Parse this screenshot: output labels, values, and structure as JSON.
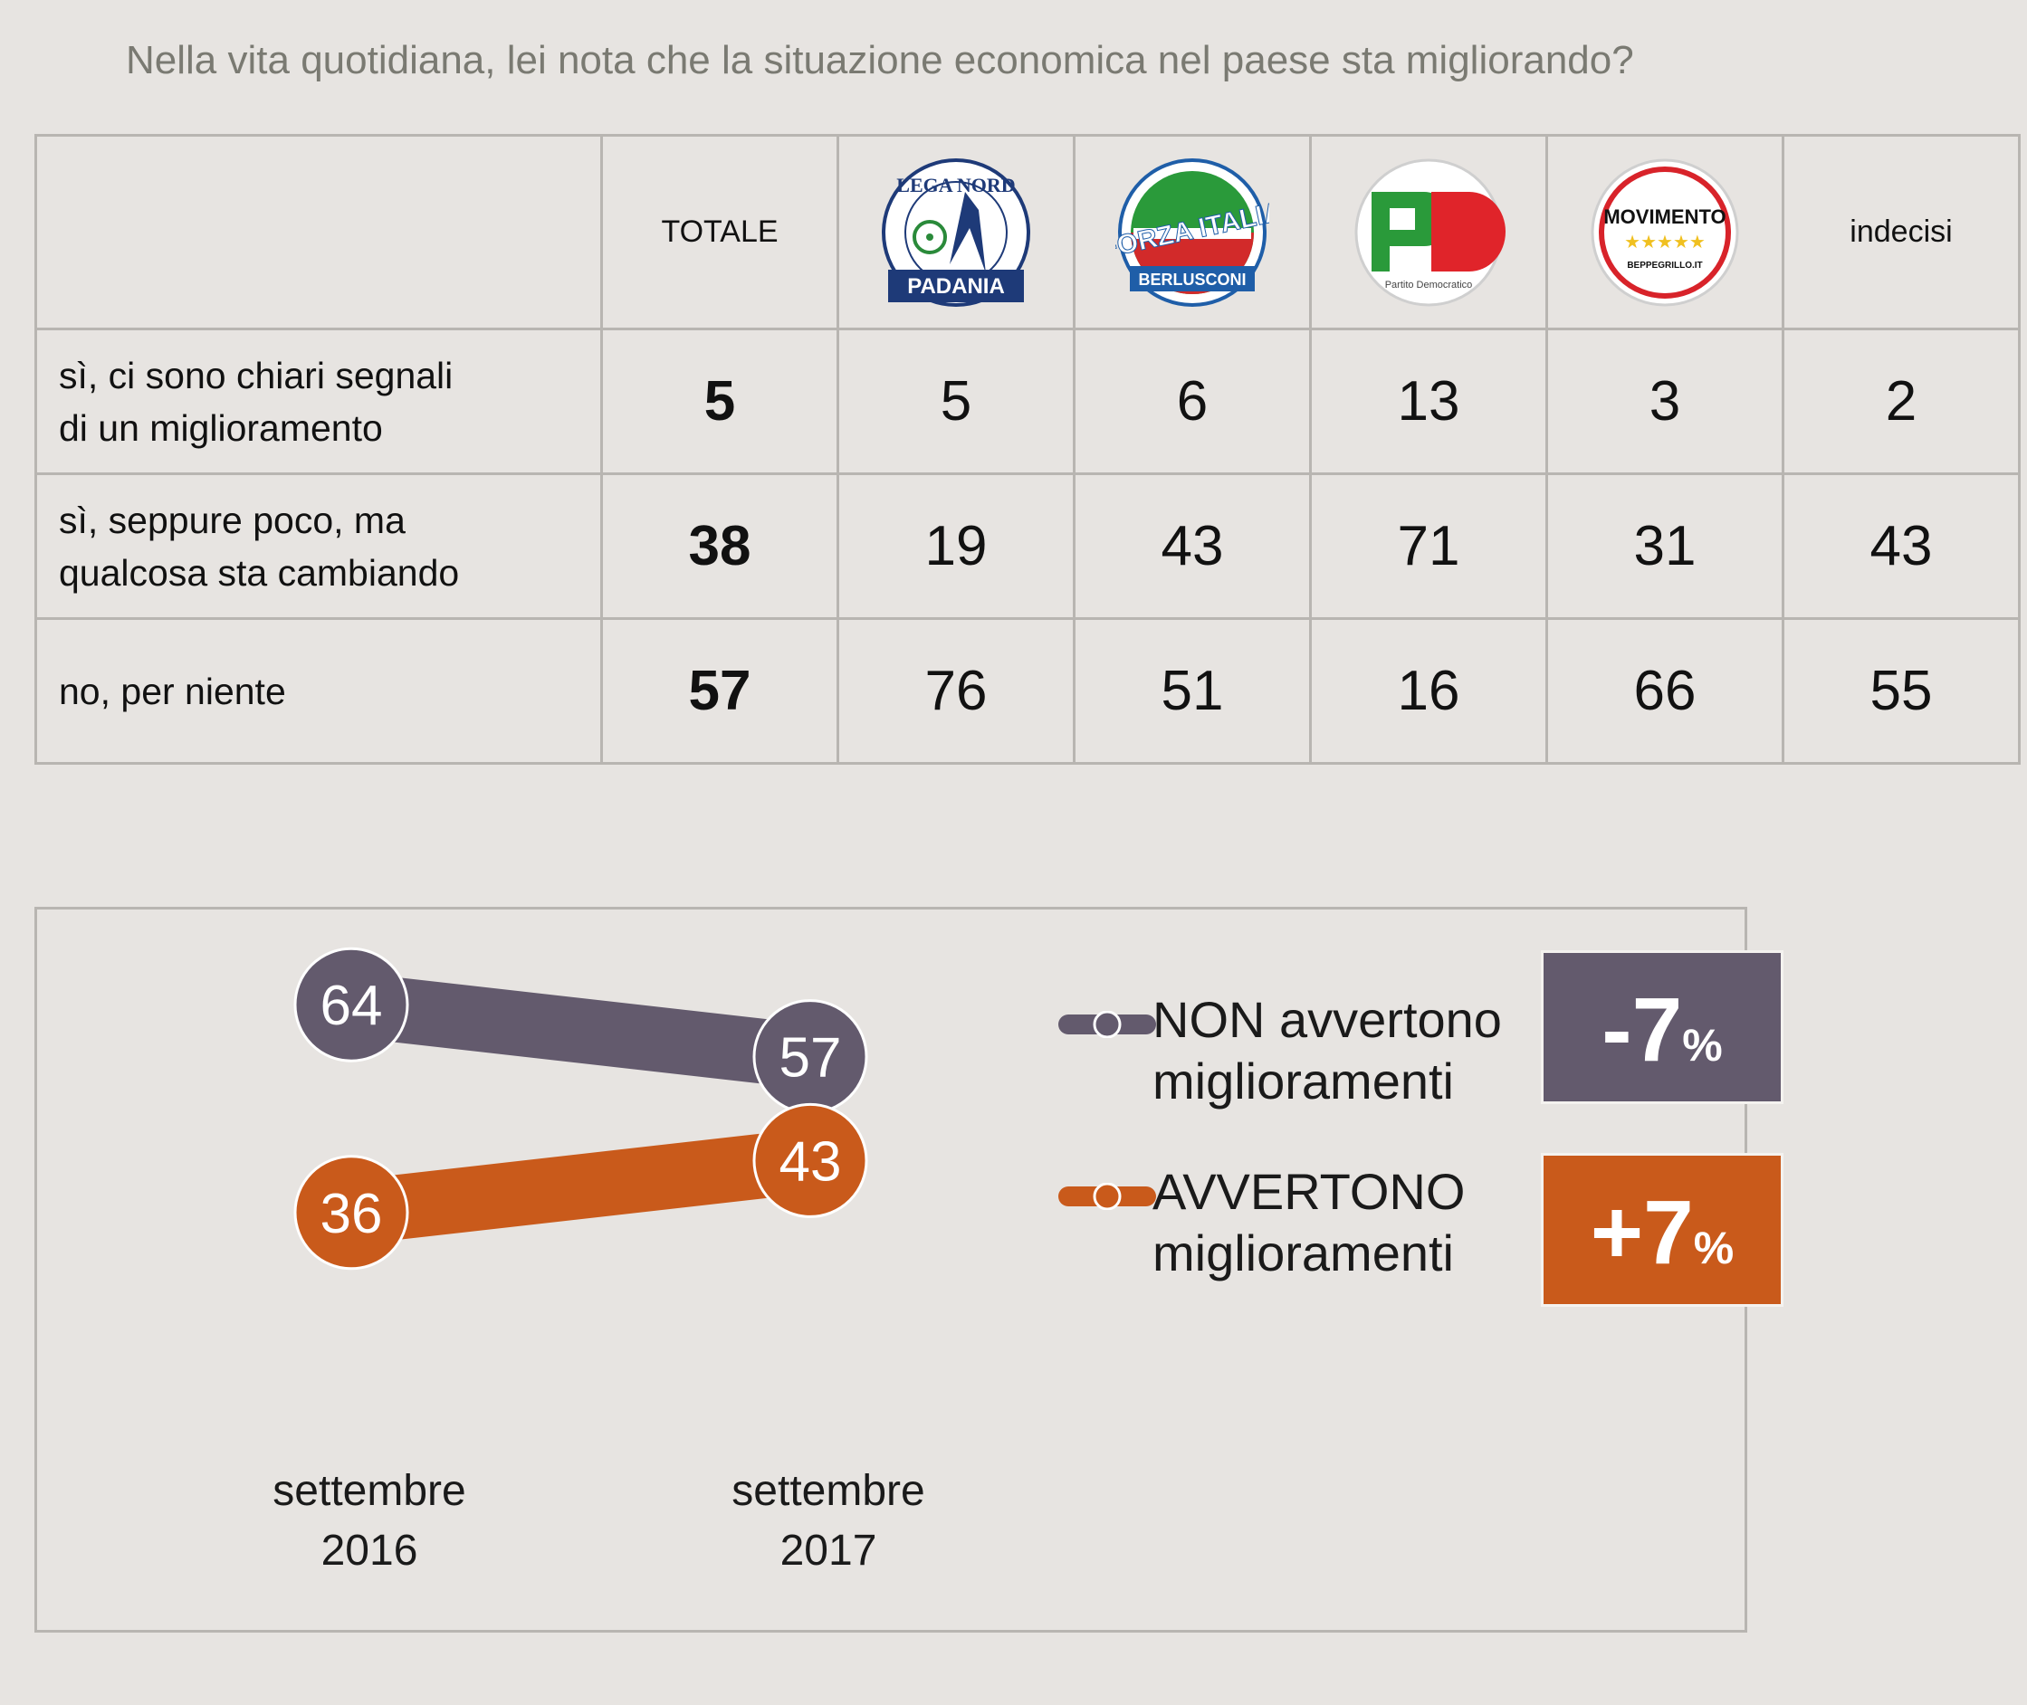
{
  "title": "Nella vita quotidiana, lei nota che la situazione economica nel paese sta migliorando?",
  "table": {
    "columns": [
      {
        "label": "TOTALE",
        "logo": null
      },
      {
        "label": "",
        "logo": "lega-nord-logo",
        "logo_text_top": "LEGA NORD",
        "logo_text_bottom": "PADANIA"
      },
      {
        "label": "",
        "logo": "forza-italia-logo",
        "logo_text_main": "FORZA ITALIA",
        "logo_text_bottom": "BERLUSCONI"
      },
      {
        "label": "",
        "logo": "pd-logo",
        "logo_text_main": "PD",
        "logo_text_bottom": "Partito Democratico"
      },
      {
        "label": "",
        "logo": "m5s-logo",
        "logo_text_main": "MOVIMENTO",
        "logo_text_bottom": "BEPPEGRILLO.IT"
      },
      {
        "label": "indecisi",
        "logo": null
      }
    ],
    "rows": [
      {
        "label_line1": "sì, ci sono chiari segnali",
        "label_line2": "di un miglioramento",
        "values": [
          "5",
          "5",
          "6",
          "13",
          "3",
          "2"
        ]
      },
      {
        "label_line1": "sì, seppure poco, ma",
        "label_line2": "qualcosa sta cambiando",
        "values": [
          "38",
          "19",
          "43",
          "71",
          "31",
          "43"
        ]
      },
      {
        "label_line1": "no, per niente",
        "label_line2": "",
        "values": [
          "57",
          "76",
          "51",
          "16",
          "66",
          "55"
        ]
      }
    ]
  },
  "colors": {
    "non": "#635a6d",
    "si": "#c95a1b",
    "background": "#e7e4e1"
  },
  "chart_data": {
    "type": "line",
    "categories": [
      "settembre 2016",
      "settembre 2017"
    ],
    "x_label_lines": [
      [
        "settembre",
        "2016"
      ],
      [
        "settembre",
        "2017"
      ]
    ],
    "series": [
      {
        "name": "NON avvertono miglioramenti",
        "name_line1": "NON avvertono",
        "name_line2": "miglioramenti",
        "values": [
          64,
          57
        ],
        "color": "#635a6d",
        "delta": "-7",
        "delta_unit": "%"
      },
      {
        "name": "AVVERTONO miglioramenti",
        "name_line1": "AVVERTONO",
        "name_line2": "miglioramenti",
        "values": [
          36,
          43
        ],
        "color": "#c95a1b",
        "delta": "+7",
        "delta_unit": "%"
      }
    ],
    "ylim": [
      30,
      70
    ]
  }
}
